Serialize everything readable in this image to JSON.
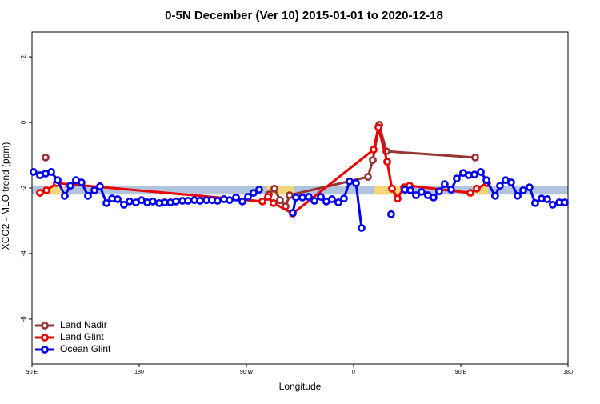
{
  "chart_data": {
    "type": "line",
    "title": "0-5N December (Ver 10)   2015-01-01 to 2020-12-18",
    "x_label": "Longitude",
    "y_label": "XCO2 - MLO trend (ppm)",
    "xlim": [
      90,
      540
    ],
    "ylim": [
      -7.37,
      2.76
    ],
    "xticks": [
      {
        "value": 90,
        "label": "90 E"
      },
      {
        "value": 180,
        "label": "180"
      },
      {
        "value": 270,
        "label": "90 W"
      },
      {
        "value": 360,
        "label": "0"
      },
      {
        "value": 450,
        "label": "90 E"
      },
      {
        "value": 540,
        "label": "180"
      }
    ],
    "yticks": [
      -6,
      -4,
      -2,
      0,
      2
    ],
    "legend": "bottom-left",
    "band": {
      "ylim": [
        -2.2,
        -1.95
      ],
      "color": "#b0c4de",
      "land_color": "#f5d77a",
      "land_spans": [
        [
          101,
          117
        ],
        [
          287,
          310
        ],
        [
          377,
          400
        ],
        [
          462,
          473
        ]
      ]
    },
    "series": [
      {
        "name": "Land Nadir",
        "color": "#993333",
        "x": [
          101.4,
          283.4,
          288.8,
          293.5,
          298.2,
          302.9,
          306.3,
          372.1,
          376.1,
          381.5,
          387.5,
          462.1
        ],
        "values": [
          -1.07,
          null,
          -2.2,
          -2.02,
          -2.37,
          -2.56,
          -2.22,
          -1.66,
          -1.15,
          -0.07,
          -0.88,
          -1.07
        ]
      },
      {
        "name": "Land Glint",
        "color": "#ee0000",
        "x": [
          96.7,
          102.1,
          110.8,
          283.4,
          288.1,
          292.8,
          308.9,
          376.8,
          380.8,
          388.2,
          392.2,
          396.9,
          402.3,
          407.0,
          458.0,
          463.4,
          472.1
        ],
        "values": [
          -2.15,
          -2.07,
          -1.85,
          -2.41,
          -2.27,
          -2.46,
          -2.78,
          -0.83,
          -0.15,
          -1.2,
          -2.02,
          -2.32,
          -1.98,
          -1.93,
          -2.15,
          -2.02,
          -1.85
        ]
      },
      {
        "name": "Ocean Glint",
        "color": "#0000ee",
        "x": [
          91.3,
          96.7,
          101.4,
          106.1,
          111.5,
          117.5,
          122.2,
          126.9,
          131.6,
          137.0,
          142.4,
          147.1,
          152.5,
          157.2,
          161.9,
          167.2,
          171.9,
          177.3,
          182.0,
          186.7,
          191.4,
          196.8,
          201.5,
          206.2,
          210.9,
          216.3,
          221.0,
          226.3,
          231.0,
          236.4,
          241.1,
          245.8,
          251.2,
          255.9,
          261.3,
          266.6,
          271.3,
          276.0,
          280.7,
          295.0,
          308.9,
          311.6,
          317.0,
          322.4,
          327.1,
          332.5,
          337.1,
          341.8,
          347.2,
          351.9,
          356.6,
          362.0,
          366.7,
          380.0,
          391.5,
          398.0,
          403.0,
          407.7,
          412.4,
          417.1,
          422.4,
          427.1,
          431.8,
          436.5,
          441.9,
          446.6,
          452.0,
          456.7,
          461.4,
          466.8,
          471.5,
          478.8,
          482.9,
          487.6,
          492.3,
          497.7,
          502.4,
          507.7,
          512.4,
          517.8,
          522.5,
          527.2,
          532.6,
          537.3
        ],
        "values": [
          -1.51,
          -1.61,
          -1.56,
          -1.51,
          -1.76,
          -2.24,
          -1.93,
          -1.76,
          -1.83,
          -2.24,
          -2.07,
          -1.95,
          -2.46,
          -2.32,
          -2.34,
          -2.51,
          -2.41,
          -2.44,
          -2.37,
          -2.44,
          -2.41,
          -2.46,
          -2.44,
          -2.44,
          -2.41,
          -2.39,
          -2.39,
          -2.37,
          -2.39,
          -2.37,
          -2.37,
          -2.39,
          -2.34,
          -2.37,
          -2.29,
          -2.41,
          -2.27,
          -2.15,
          -2.05,
          null,
          -2.76,
          -2.29,
          -2.29,
          -2.27,
          -2.39,
          -2.27,
          -2.41,
          -2.34,
          -2.44,
          -2.32,
          -1.8,
          -1.85,
          -3.22,
          null,
          -2.8,
          null,
          -2.05,
          -2.07,
          -2.22,
          -2.12,
          -2.22,
          -2.29,
          -2.1,
          -1.88,
          -2.05,
          -1.71,
          -1.54,
          -1.61,
          -1.59,
          -1.51,
          -1.76,
          -2.24,
          -1.93,
          -1.76,
          -1.83,
          -2.24,
          -2.07,
          -1.98,
          -2.46,
          -2.32,
          -2.34,
          -2.51,
          -2.44,
          -2.44
        ]
      }
    ]
  }
}
